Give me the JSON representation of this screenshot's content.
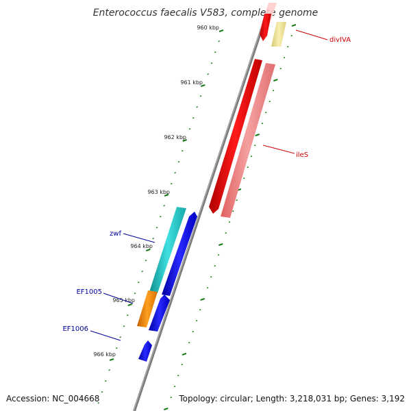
{
  "title": "Enterococcus faecalis V583, complete genome",
  "footer": {
    "accession": "Accession: NC_004668",
    "topology": "Topology: circular; Length: 3,218,031 bp; Genes: 3,192"
  },
  "ticks": [
    "960 kbp",
    "961 kbp",
    "962 kbp",
    "963 kbp",
    "964 kbp",
    "965 kbp",
    "966 kbp"
  ],
  "genes": [
    {
      "label": "divIVA",
      "color": "#cc0000"
    },
    {
      "label": "ileS",
      "color": "#cc0000"
    },
    {
      "label": "zwf",
      "color": "#000099"
    },
    {
      "label": "EF1005",
      "color": "#000099"
    },
    {
      "label": "EF1006",
      "color": "#000099"
    }
  ],
  "colors": {
    "backbone": "#808080",
    "tick": "#1a7a1a",
    "red": "#ff0000",
    "pink": "#f08080",
    "yellow": "#f0e68c",
    "cyan": "#20c0c0",
    "blue": "#0000ee",
    "orange": "#ff8c00"
  }
}
